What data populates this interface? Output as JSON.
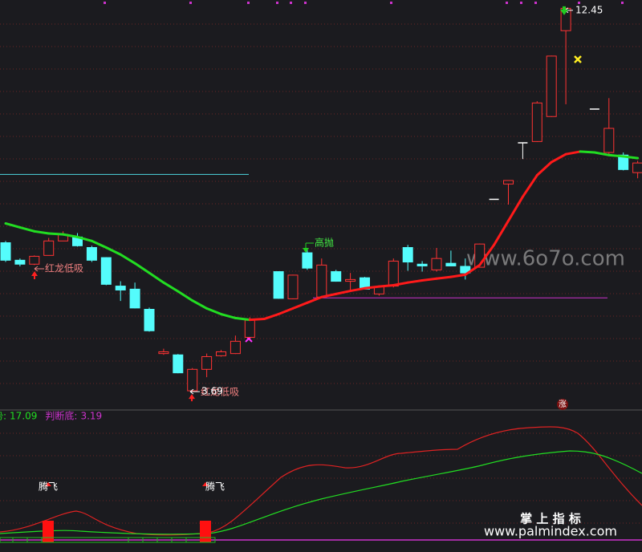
{
  "chart_data": {
    "type": "candlestick",
    "ylim": [
      3.29,
      12.63
    ],
    "up_color": "#ff3333",
    "down_color": "#54fcfc",
    "flat_color": "#ffffff",
    "candles": [
      {
        "o": 7.09,
        "h": 7.13,
        "l": 6.65,
        "c": 6.69
      },
      {
        "o": 6.69,
        "h": 6.73,
        "l": 6.55,
        "c": 6.6
      },
      {
        "o": 6.6,
        "h": 6.8,
        "l": 6.58,
        "c": 6.78
      },
      {
        "o": 6.8,
        "h": 7.2,
        "l": 6.8,
        "c": 7.13
      },
      {
        "o": 7.13,
        "h": 7.35,
        "l": 7.13,
        "c": 7.28
      },
      {
        "o": 7.22,
        "h": 7.31,
        "l": 7.0,
        "c": 7.02
      },
      {
        "o": 6.98,
        "h": 7.02,
        "l": 6.65,
        "c": 6.69
      },
      {
        "o": 6.75,
        "h": 6.76,
        "l": 6.12,
        "c": 6.14
      },
      {
        "o": 6.1,
        "h": 6.21,
        "l": 5.76,
        "c": 6.01
      },
      {
        "o": 6.03,
        "h": 6.18,
        "l": 5.59,
        "c": 5.6
      },
      {
        "o": 5.57,
        "h": 5.61,
        "l": 5.06,
        "c": 5.08
      },
      {
        "o": 4.56,
        "h": 4.67,
        "l": 4.53,
        "c": 4.6
      },
      {
        "o": 4.53,
        "h": 4.55,
        "l": 4.11,
        "c": 4.12
      },
      {
        "o": 3.71,
        "h": 4.23,
        "l": 3.69,
        "c": 4.2
      },
      {
        "o": 4.2,
        "h": 4.56,
        "l": 4.02,
        "c": 4.49
      },
      {
        "o": 4.51,
        "h": 4.64,
        "l": 4.49,
        "c": 4.6
      },
      {
        "o": 4.56,
        "h": 4.97,
        "l": 4.55,
        "c": 4.84
      },
      {
        "o": 4.93,
        "h": 5.39,
        "l": 4.93,
        "c": 5.32
      },
      null,
      {
        "o": 6.43,
        "h": 6.44,
        "l": 5.81,
        "c": 5.82
      },
      {
        "o": 5.81,
        "h": 6.36,
        "l": 5.8,
        "c": 6.35
      },
      {
        "o": 6.86,
        "h": 6.95,
        "l": 6.47,
        "c": 6.51
      },
      {
        "o": 5.85,
        "h": 6.73,
        "l": 5.84,
        "c": 6.58
      },
      {
        "o": 6.43,
        "h": 6.47,
        "l": 6.2,
        "c": 6.21
      },
      {
        "o": 6.21,
        "h": 6.4,
        "l": 5.99,
        "c": 6.25
      },
      {
        "o": 6.29,
        "h": 6.31,
        "l": 6.02,
        "c": 6.03
      },
      {
        "o": 5.92,
        "h": 6.1,
        "l": 5.88,
        "c": 6.09
      },
      {
        "o": 6.1,
        "h": 6.73,
        "l": 6.07,
        "c": 6.67
      },
      {
        "o": 6.98,
        "h": 7.04,
        "l": 6.45,
        "c": 6.65
      },
      {
        "o": 6.6,
        "h": 6.67,
        "l": 6.43,
        "c": 6.56
      },
      {
        "o": 6.47,
        "h": 6.97,
        "l": 6.43,
        "c": 6.73
      },
      {
        "o": 6.62,
        "h": 6.91,
        "l": 6.55,
        "c": 6.56
      },
      {
        "o": 6.55,
        "h": 6.73,
        "l": 6.25,
        "c": 6.4
      },
      {
        "o": 6.53,
        "h": 7.07,
        "l": 6.52,
        "c": 7.06
      },
      {
        "o": 8.08,
        "h": 8.08,
        "l": 8.08,
        "c": 8.08
      },
      {
        "o": 8.43,
        "h": 8.51,
        "l": 7.96,
        "c": 8.51
      },
      {
        "o": 9.37,
        "h": 9.37,
        "l": 9.0,
        "c": 9.37
      },
      {
        "o": 9.4,
        "h": 10.32,
        "l": 9.39,
        "c": 10.28
      },
      {
        "o": 9.97,
        "h": 11.36,
        "l": 9.96,
        "c": 11.35
      },
      {
        "o": 11.93,
        "h": 12.45,
        "l": 10.25,
        "c": 12.44
      },
      null,
      {
        "o": 10.14,
        "h": 10.14,
        "l": 10.14,
        "c": 10.14
      },
      {
        "o": 9.15,
        "h": 10.39,
        "l": 9.11,
        "c": 9.7
      },
      {
        "o": 9.09,
        "h": 9.15,
        "l": 8.74,
        "c": 8.76
      },
      {
        "o": 8.69,
        "h": 8.96,
        "l": 8.56,
        "c": 8.91
      }
    ],
    "ma": [
      7.53,
      7.44,
      7.35,
      7.3,
      7.28,
      7.22,
      7.13,
      6.98,
      6.82,
      6.62,
      6.4,
      6.18,
      5.98,
      5.77,
      5.59,
      5.46,
      5.37,
      5.33,
      5.35,
      5.46,
      5.59,
      5.72,
      5.85,
      5.92,
      5.99,
      6.05,
      6.09,
      6.12,
      6.18,
      6.23,
      6.27,
      6.31,
      6.36,
      6.58,
      7.04,
      7.59,
      8.14,
      8.63,
      8.93,
      9.11,
      9.17,
      9.15,
      9.09,
      9.06,
      9.02
    ],
    "ma_up_color": "#ff1a1a",
    "ma_down_color": "#22dd22",
    "reference_lines": [
      {
        "value": 8.65,
        "color": "#4dd8e0"
      },
      {
        "value": 5.83,
        "color": "#cc33cc"
      }
    ],
    "high_label": 12.45,
    "low_label": 3.69,
    "buy_label": "红龙低吸",
    "buy_label_2": "红龙低吸",
    "sell_label": "高抛",
    "rise_label": "涨",
    "indicator_legend": [
      {
        "name": "强势:",
        "value": 17.09,
        "color": "#22dd22"
      },
      {
        "name": "判断底:",
        "value": 3.19,
        "color": "#cc33cc"
      }
    ],
    "signal_label": "腾飞",
    "signal_label_2": "腾飞",
    "watermark": "www.6o7o.com",
    "brand": "掌 上 指 标",
    "brand_url": "www.palmindex.com"
  }
}
